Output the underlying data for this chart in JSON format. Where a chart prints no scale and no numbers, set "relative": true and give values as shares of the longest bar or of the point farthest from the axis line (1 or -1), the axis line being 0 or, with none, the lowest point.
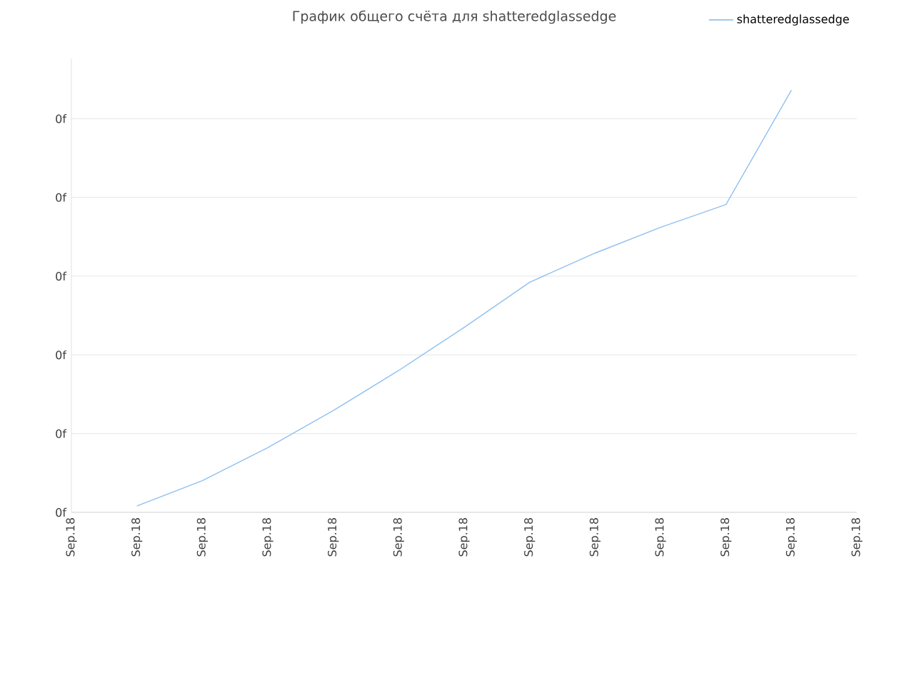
{
  "chart_data": {
    "type": "line",
    "title": "График общего счёта для shatteredglassedge",
    "relative": true,
    "categories": [
      "Sep.18",
      "Sep.18",
      "Sep.18",
      "Sep.18",
      "Sep.18",
      "Sep.18",
      "Sep.18",
      "Sep.18",
      "Sep.18",
      "Sep.18",
      "Sep.18",
      "Sep.18",
      "Sep.18"
    ],
    "series": [
      {
        "name": "shatteredglassedge",
        "color": "#90c0f0",
        "values": [
          null,
          0.015,
          0.075,
          0.153,
          0.241,
          0.336,
          0.438,
          0.545,
          0.614,
          0.675,
          0.729,
          1,
          null
        ]
      }
    ],
    "annotations": [
      "0f",
      "0f",
      "0f",
      "0f",
      "0f",
      "0f"
    ],
    "grid": "y",
    "legend": "top right",
    "marker": "none",
    "line_style": "solid"
  }
}
